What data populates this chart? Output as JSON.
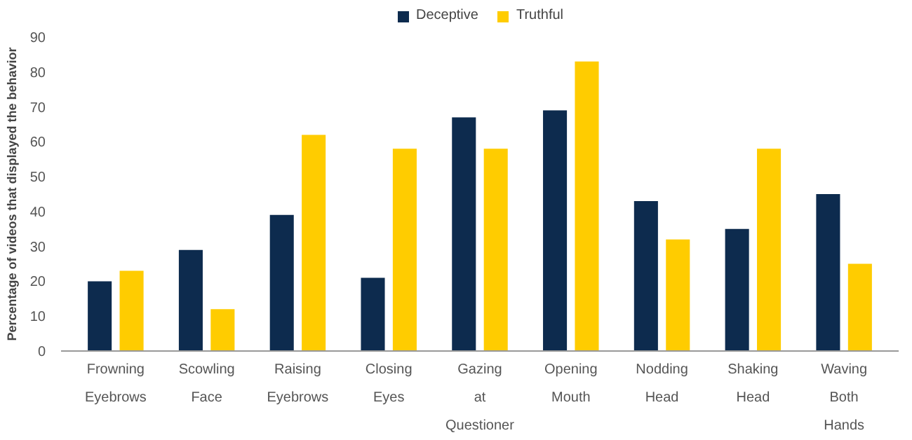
{
  "chart_data": {
    "type": "bar",
    "ylabel": "Percentage of videos that displayed the behavior",
    "categories": [
      "Frowning\nEyebrows",
      "Scowling\nFace",
      "Raising\nEyebrows",
      "Closing\nEyes",
      "Gazing\nat\nQuestioner",
      "Opening\nMouth",
      "Nodding\nHead",
      "Shaking\nHead",
      "Waving\nBoth\nHands"
    ],
    "series": [
      {
        "name": "Deceptive",
        "color": "#0d2b4e",
        "values": [
          20,
          29,
          39,
          21,
          67,
          69,
          43,
          35,
          45
        ]
      },
      {
        "name": "Truthful",
        "color": "#ffcc00",
        "values": [
          23,
          12,
          62,
          58,
          58,
          83,
          32,
          58,
          25
        ]
      }
    ],
    "ylim": [
      0,
      90
    ],
    "yticks": [
      0,
      10,
      20,
      30,
      40,
      50,
      60,
      70,
      80,
      90
    ],
    "grid": false,
    "legend": "top"
  }
}
